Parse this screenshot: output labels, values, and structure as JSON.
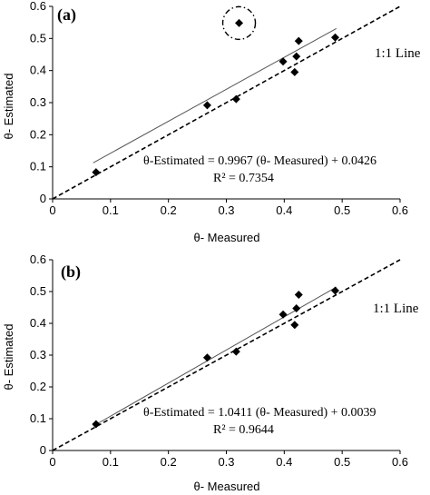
{
  "chart_data": [
    {
      "type": "scatter",
      "panel_label": "(a)",
      "xlabel": "θ- Measured",
      "ylabel": "θ- Estimated",
      "xlim": [
        0,
        0.6
      ],
      "ylim": [
        0,
        0.6
      ],
      "x_ticks": [
        "0",
        "0.1",
        "0.2",
        "0.3",
        "0.4",
        "0.5",
        "0.6"
      ],
      "y_ticks": [
        "0",
        "0.1",
        "0.2",
        "0.3",
        "0.4",
        "0.5",
        "0.6"
      ],
      "points": [
        {
          "x": 0.075,
          "y": 0.083
        },
        {
          "x": 0.267,
          "y": 0.292
        },
        {
          "x": 0.317,
          "y": 0.311
        },
        {
          "x": 0.322,
          "y": 0.548
        },
        {
          "x": 0.398,
          "y": 0.428
        },
        {
          "x": 0.418,
          "y": 0.395
        },
        {
          "x": 0.421,
          "y": 0.444
        },
        {
          "x": 0.425,
          "y": 0.492
        },
        {
          "x": 0.488,
          "y": 0.503
        }
      ],
      "circled_point_index": 3,
      "regression_line": {
        "slope": 0.9967,
        "intercept": 0.0426,
        "x_range": [
          0.07,
          0.49
        ]
      },
      "one_to_one_label": "1:1 Line",
      "equation": "θ-Estimated  = 0.9967 (θ- Measured)  + 0.0426",
      "r_squared": "R² = 0.7354"
    },
    {
      "type": "scatter",
      "panel_label": "(b)",
      "xlabel": "θ- Measured",
      "ylabel": "θ- Estimated",
      "xlim": [
        0,
        0.6
      ],
      "ylim": [
        0,
        0.6
      ],
      "x_ticks": [
        "0",
        "0.1",
        "0.2",
        "0.3",
        "0.4",
        "0.5",
        "0.6"
      ],
      "y_ticks": [
        "0",
        "0.1",
        "0.2",
        "0.3",
        "0.4",
        "0.5",
        "0.6"
      ],
      "points": [
        {
          "x": 0.075,
          "y": 0.083
        },
        {
          "x": 0.267,
          "y": 0.292
        },
        {
          "x": 0.317,
          "y": 0.311
        },
        {
          "x": 0.398,
          "y": 0.428
        },
        {
          "x": 0.418,
          "y": 0.395
        },
        {
          "x": 0.421,
          "y": 0.447
        },
        {
          "x": 0.425,
          "y": 0.49
        },
        {
          "x": 0.488,
          "y": 0.503
        }
      ],
      "regression_line": {
        "slope": 1.0411,
        "intercept": 0.0039,
        "x_range": [
          0.07,
          0.49
        ]
      },
      "one_to_one_label": "1:1 Line",
      "equation": "θ-Estimated  = 1.0411 (θ- Measured)  + 0.0039",
      "r_squared": "R² = 0.9644"
    }
  ]
}
